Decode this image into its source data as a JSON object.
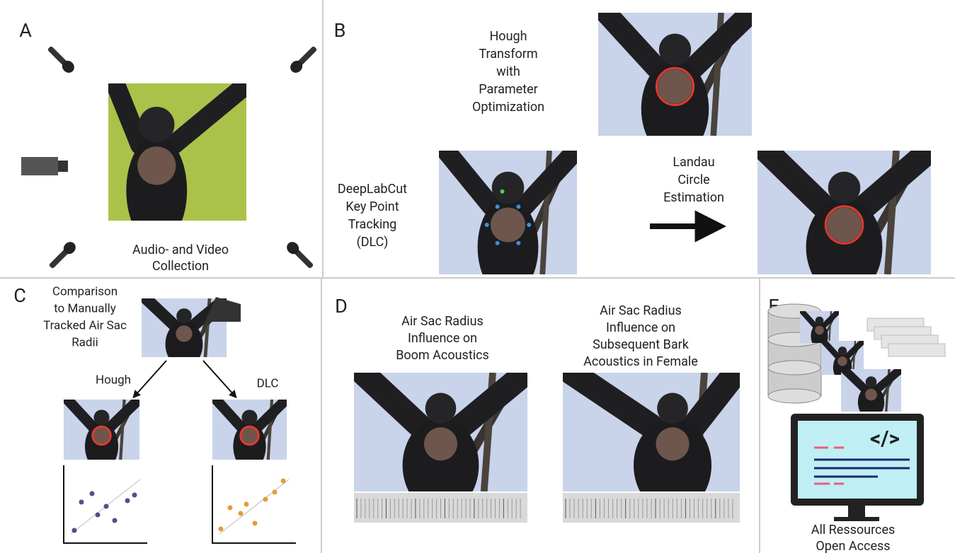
{
  "panels": {
    "A": {
      "label": "A",
      "caption": [
        "Audio- and Video",
        "Collection"
      ]
    },
    "B": {
      "label": "B",
      "hough": [
        "Hough",
        "Transform",
        "with",
        "Parameter",
        "Optimization"
      ],
      "dlc": [
        "DeepLabCut",
        "Key Point",
        "Tracking",
        "(DLC)"
      ],
      "landau": [
        "Landau",
        "Circle",
        "Estimation"
      ]
    },
    "C": {
      "label": "C",
      "title": [
        "Comparison",
        "to Manually",
        "Tracked Air Sac",
        "Radii"
      ],
      "left": "Hough",
      "right": "DLC"
    },
    "D": {
      "label": "D",
      "left": [
        "Air Sac Radius",
        "Influence on",
        "Boom Acoustics"
      ],
      "right": [
        "Air Sac Radius",
        "Influence on",
        "Subsequent Bark",
        "Acoustics in Female"
      ]
    },
    "E": {
      "label": "E",
      "caption": [
        "All Ressources",
        "Open Access"
      ]
    }
  }
}
